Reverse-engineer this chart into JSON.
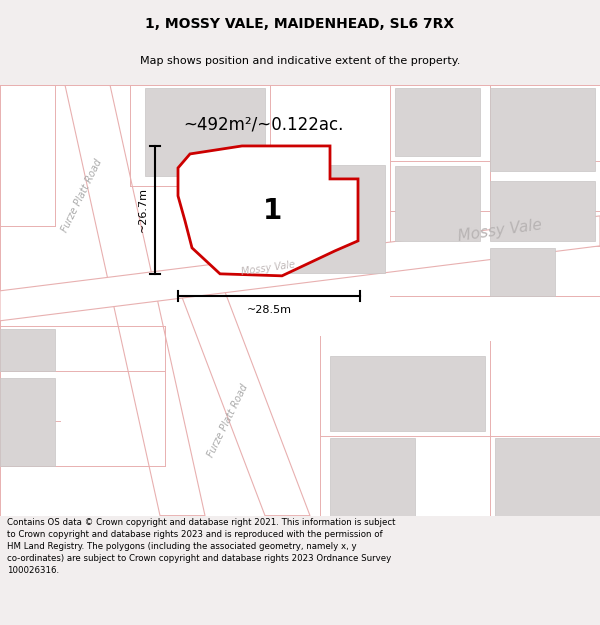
{
  "title": "1, MOSSY VALE, MAIDENHEAD, SL6 7RX",
  "subtitle": "Map shows position and indicative extent of the property.",
  "area_label": "~492m²/~0.122ac.",
  "plot_number": "1",
  "width_label": "~28.5m",
  "height_label": "~26.7m",
  "footer": "Contains OS data © Crown copyright and database right 2021. This information is subject\nto Crown copyright and database rights 2023 and is reproduced with the permission of\nHM Land Registry. The polygons (including the associated geometry, namely x, y\nco-ordinates) are subject to Crown copyright and database rights 2023 Ordnance Survey\n100026316.",
  "bg_color": "#f2eeee",
  "map_white": "#ffffff",
  "road_line_color": "#e8b0b0",
  "building_fill": "#d8d4d4",
  "building_edge": "#c8c4c4",
  "plot_stroke": "#cc0000",
  "dim_color": "#111111",
  "road_text_color": "#aaaaaa",
  "title_fontsize": 10,
  "subtitle_fontsize": 8,
  "footer_fontsize": 6.2
}
